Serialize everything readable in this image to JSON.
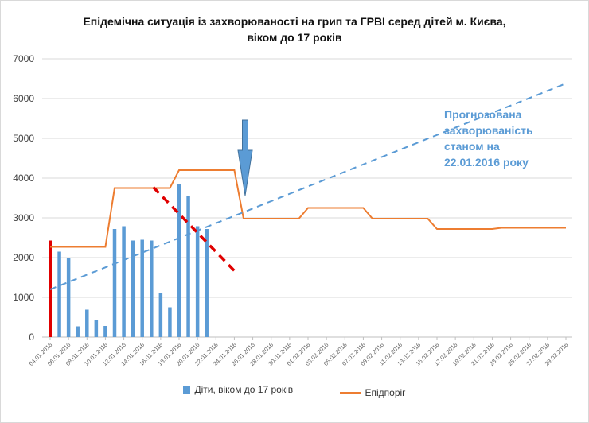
{
  "chart_data": {
    "type": "bar",
    "title_line1": "Епідемічна ситуація із захворюваності на грип та ГРВІ серед дітей м. Києва,",
    "title_line2": "віком до 17 років",
    "ylim": [
      0,
      7000
    ],
    "yticks": [
      "0",
      "1000",
      "2000",
      "3000",
      "4000",
      "5000",
      "6000",
      "7000"
    ],
    "x_start": "04.01.2016",
    "x_days": 56,
    "xtick_labels": [
      "04.01.2016",
      "06.01.2016",
      "08.01.2016",
      "10.01.2016",
      "12.01.2016",
      "14.01.2016",
      "16.01.2016",
      "18.01.2016",
      "20.01.2016",
      "22.01.2016",
      "24.01.2016",
      "26.01.2016",
      "28.01.2016",
      "30.01.2016",
      "01.02.2016",
      "03.02.2016",
      "05.02.2016",
      "07.02.2016",
      "09.02.2016",
      "11.02.2016",
      "13.02.2016",
      "15.02.2016",
      "17.02.2016",
      "19.02.2016",
      "21.02.2016",
      "23.02.2016",
      "25.02.2016",
      "27.02.2016",
      "29.02.2016"
    ],
    "series": [
      {
        "name": "Діти, віком до 17 років",
        "type": "bar",
        "color": "#5b9bd5",
        "highlight_first_color": "#e00000",
        "values": [
          2430,
          2150,
          1980,
          270,
          690,
          430,
          280,
          2720,
          2790,
          2430,
          2450,
          2430,
          1110,
          750,
          3850,
          3560,
          2790,
          2720
        ]
      },
      {
        "name": "Епідпоріг",
        "type": "line",
        "color": "#ed7d31",
        "points": [
          [
            0,
            2270
          ],
          [
            6,
            2270
          ],
          [
            7,
            3750
          ],
          [
            13,
            3750
          ],
          [
            14,
            4200
          ],
          [
            20,
            4200
          ],
          [
            21,
            2980
          ],
          [
            27,
            2980
          ],
          [
            28,
            3250
          ],
          [
            34,
            3250
          ],
          [
            35,
            2980
          ],
          [
            41,
            2980
          ],
          [
            42,
            2720
          ],
          [
            48,
            2720
          ],
          [
            49,
            2750
          ],
          [
            56,
            2750
          ]
        ]
      }
    ],
    "trend_line": {
      "color": "#5b9bd5",
      "points": [
        [
          0,
          1200
        ],
        [
          56,
          6380
        ]
      ]
    },
    "decline_line": {
      "color": "#e00000",
      "points": [
        [
          11.2,
          3770
        ],
        [
          20,
          1670
        ]
      ]
    },
    "arrow_day": 21,
    "annotation": {
      "lines": [
        "Прогнозована",
        "захворюваність",
        "станом на",
        "22.01.2016 року"
      ]
    },
    "legend_position": "bottom",
    "grid": true
  }
}
